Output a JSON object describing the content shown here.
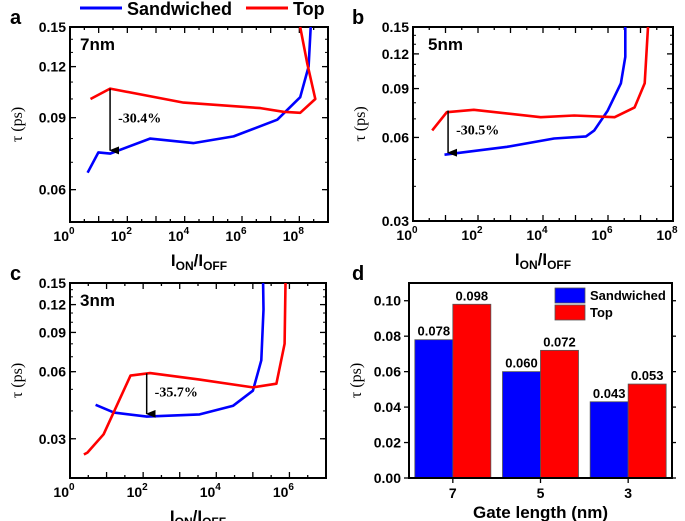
{
  "legend": {
    "items": [
      {
        "name": "Sandwiched",
        "color": "#0000ff"
      },
      {
        "name": "Top",
        "color": "#ff0000"
      }
    ]
  },
  "chart_data": [
    {
      "panel": "a",
      "type": "line",
      "title": "7nm",
      "xlabel": "I_ON/I_OFF",
      "ylabel": "τ (ps)",
      "xscale": "log",
      "yscale": "log",
      "xlim": [
        1,
        1000000000.0
      ],
      "ylim": [
        0.05,
        0.15
      ],
      "xtick_exponents": [
        0,
        2,
        4,
        6,
        8
      ],
      "yticks": [
        "0.06",
        "0.09",
        "0.12",
        "0.15"
      ],
      "annotation": {
        "text": "-30.4%",
        "x": 25,
        "from": 0.106,
        "to": 0.074
      },
      "series": [
        {
          "name": "Sandwiched",
          "color": "#0000ff",
          "points": [
            [
              4.1,
              0.066
            ],
            [
              9.8,
              0.074
            ],
            [
              25,
              0.0735
            ],
            [
              620,
              0.08
            ],
            [
              20000,
              0.078
            ],
            [
              510000,
              0.081
            ],
            [
              17000000.0,
              0.089
            ],
            [
              107000000.0,
              0.101
            ],
            [
              210000000.0,
              0.12
            ],
            [
              250000000.0,
              0.15
            ]
          ]
        },
        {
          "name": "Top",
          "color": "#ff0000",
          "points": [
            [
              5.2,
              0.1
            ],
            [
              25,
              0.106
            ],
            [
              9100,
              0.098
            ],
            [
              4400000.0,
              0.095
            ],
            [
              28000000.0,
              0.093
            ],
            [
              107000000.0,
              0.0925
            ],
            [
              360000000.0,
              0.1
            ],
            [
              190000000.0,
              0.122
            ],
            [
              107000000.0,
              0.15
            ]
          ]
        }
      ]
    },
    {
      "panel": "b",
      "type": "line",
      "title": "5nm",
      "xlabel": "I_ON/I_OFF",
      "ylabel": "τ (ps)",
      "xscale": "log",
      "yscale": "log",
      "xlim": [
        1,
        100000000.0
      ],
      "ylim": [
        0.03,
        0.15
      ],
      "xtick_exponents": [
        0,
        2,
        4,
        6,
        8
      ],
      "yticks": [
        "0.03",
        "0.06",
        "0.09",
        "0.12",
        "0.15"
      ],
      "annotation": {
        "text": "-30.5%",
        "x": 12,
        "from": 0.075,
        "to": 0.052
      },
      "series": [
        {
          "name": "Sandwiched",
          "color": "#0000ff",
          "points": [
            [
              9.3,
              0.052
            ],
            [
              790,
              0.0555
            ],
            [
              22000,
              0.0595
            ],
            [
              210000,
              0.0605
            ],
            [
              380000,
              0.0636
            ],
            [
              980000,
              0.075
            ],
            [
              2500000.0,
              0.094
            ],
            [
              3400000.0,
              0.117
            ],
            [
              3400000.0,
              0.15
            ]
          ]
        },
        {
          "name": "Top",
          "color": "#ff0000",
          "points": [
            [
              3.9,
              0.0636
            ],
            [
              11,
              0.074
            ],
            [
              74,
              0.0755
            ],
            [
              8500,
              0.071
            ],
            [
              91000,
              0.072
            ],
            [
              1600000.0,
              0.071
            ],
            [
              6600000.0,
              0.077
            ],
            [
              13500000.0,
              0.094
            ],
            [
              17000000.0,
              0.15
            ]
          ]
        }
      ]
    },
    {
      "panel": "c",
      "type": "line",
      "title": "3nm",
      "xlabel": "I_ON/I_OFF",
      "ylabel": "τ (ps)",
      "xscale": "log",
      "yscale": "log",
      "xlim": [
        1,
        10000000.0
      ],
      "ylim": [
        0.02,
        0.15
      ],
      "xtick_exponents": [
        0,
        2,
        4,
        6
      ],
      "yticks": [
        "0.03",
        "0.06",
        "0.09",
        "0.12",
        "0.15"
      ],
      "annotation": {
        "text": "-35.7%",
        "x": 125,
        "from": 0.059,
        "to": 0.038
      },
      "series": [
        {
          "name": "Sandwiched",
          "color": "#0000ff",
          "points": [
            [
              5,
              0.0426
            ],
            [
              16,
              0.0393
            ],
            [
              126,
              0.0377
            ],
            [
              3500,
              0.0386
            ],
            [
              29000,
              0.0422
            ],
            [
              100000,
              0.0493
            ],
            [
              170000,
              0.0675
            ],
            [
              195000,
              0.114
            ],
            [
              190000,
              0.15
            ]
          ]
        },
        {
          "name": "Top",
          "color": "#ff0000",
          "points": [
            [
              2.4,
              0.0255
            ],
            [
              3,
              0.026
            ],
            [
              8.3,
              0.0314
            ],
            [
              45,
              0.0576
            ],
            [
              155,
              0.0591
            ],
            [
              3500,
              0.0553
            ],
            [
              100000,
              0.051
            ],
            [
              440000,
              0.053
            ],
            [
              740000,
              0.08
            ],
            [
              780000,
              0.15
            ]
          ]
        }
      ]
    },
    {
      "panel": "d",
      "type": "bar",
      "xlabel": "Gate length (nm)",
      "ylabel": "τ (ps)",
      "categories": [
        "7",
        "5",
        "3"
      ],
      "ylim": [
        0,
        0.11
      ],
      "yticks": [
        "0.00",
        "0.02",
        "0.04",
        "0.06",
        "0.08",
        "0.10"
      ],
      "legend_position": "top-right",
      "series": [
        {
          "name": "Sandwiched",
          "color": "#0000ff",
          "values": [
            0.078,
            0.06,
            0.043
          ],
          "labels": [
            "0.078",
            "0.060",
            "0.043"
          ]
        },
        {
          "name": "Top",
          "color": "#ff0000",
          "values": [
            0.098,
            0.072,
            0.053
          ],
          "labels": [
            "0.098",
            "0.072",
            "0.053"
          ]
        }
      ]
    }
  ]
}
